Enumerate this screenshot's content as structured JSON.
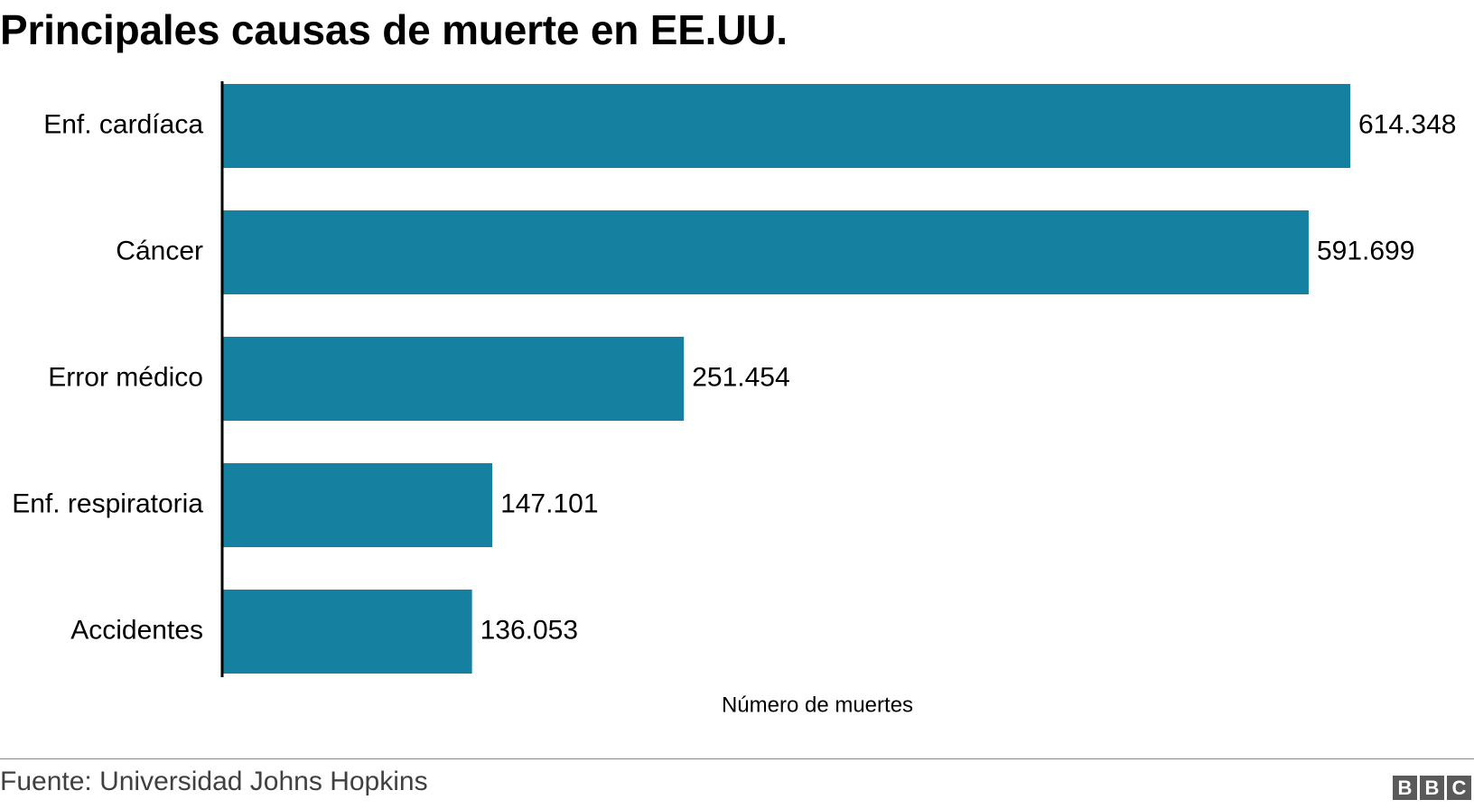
{
  "title": "Principales causas de muerte en EE.UU.",
  "source": "Fuente: Universidad Johns Hopkins",
  "logo": [
    "B",
    "B",
    "C"
  ],
  "colors": {
    "bar": "#1580a0",
    "axis": "#000000"
  },
  "chart_data": {
    "type": "bar",
    "orientation": "horizontal",
    "categories": [
      "Enf. cardíaca",
      "Cáncer",
      "Error médico",
      "Enf. respiratoria",
      "Accidentes"
    ],
    "values": [
      614348,
      591699,
      251454,
      147101,
      136053
    ],
    "value_labels": [
      "614.348",
      "591.699",
      "251.454",
      "147.101",
      "136.053"
    ],
    "xlabel": "Número de muertes",
    "ylabel": "",
    "xlim": [
      0,
      614348
    ],
    "grid": false
  }
}
